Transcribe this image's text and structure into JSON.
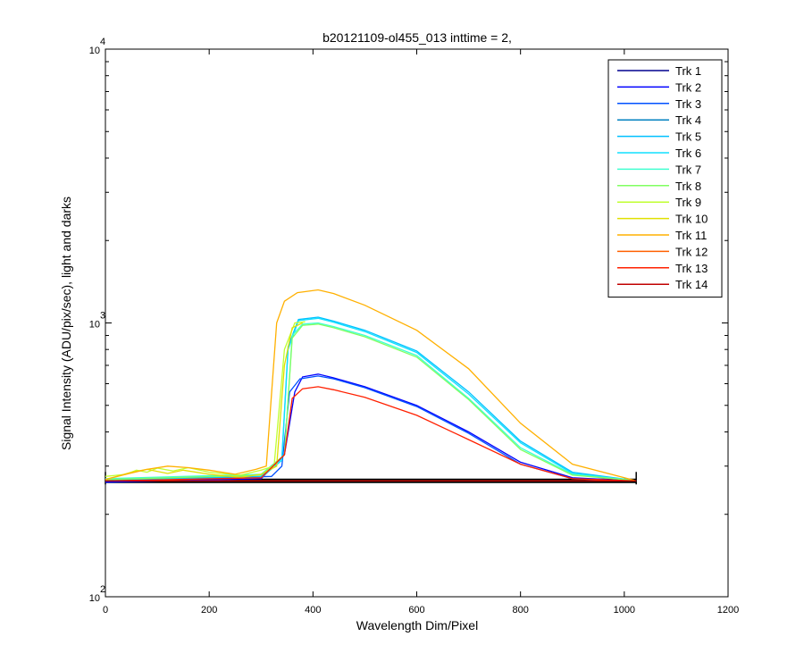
{
  "chart_data": {
    "type": "line",
    "title": "b20121109-ol455_013 inttime = 2,",
    "xlabel": "Wavelength Dim/Pixel",
    "ylabel": "Signal Intensity (ADU/pix/sec), light and darks",
    "xlim": [
      0,
      1200
    ],
    "ylim": [
      100,
      10000
    ],
    "yscale": "log",
    "x_ticks": [
      0,
      200,
      400,
      600,
      800,
      1000,
      1200
    ],
    "y_ticks": [
      {
        "base": "10",
        "exp": "2",
        "value": 100
      },
      {
        "base": "10",
        "exp": "3",
        "value": 1000
      },
      {
        "base": "10",
        "exp": "4",
        "value": 10000
      }
    ],
    "legend_location": "top-right",
    "grid": false,
    "dark_level": 265,
    "series": [
      {
        "name": "Trk 1",
        "color": "#00008f",
        "points": [
          [
            0,
            265
          ],
          [
            1023,
            265
          ]
        ]
      },
      {
        "name": "Trk 2",
        "color": "#0000ff",
        "points": [
          [
            0,
            262
          ],
          [
            300,
            270
          ],
          [
            345,
            330
          ],
          [
            365,
            560
          ],
          [
            380,
            635
          ],
          [
            410,
            650
          ],
          [
            440,
            630
          ],
          [
            500,
            585
          ],
          [
            600,
            500
          ],
          [
            700,
            400
          ],
          [
            800,
            310
          ],
          [
            900,
            272
          ],
          [
            1020,
            265
          ]
        ]
      },
      {
        "name": "Trk 3",
        "color": "#0050ff",
        "points": [
          [
            0,
            265
          ],
          [
            320,
            275
          ],
          [
            340,
            300
          ],
          [
            355,
            560
          ],
          [
            375,
            625
          ],
          [
            410,
            640
          ],
          [
            440,
            625
          ],
          [
            500,
            580
          ],
          [
            600,
            495
          ],
          [
            700,
            395
          ],
          [
            800,
            305
          ],
          [
            900,
            270
          ],
          [
            1020,
            265
          ]
        ]
      },
      {
        "name": "Trk 4",
        "color": "#0080c0",
        "points": [
          [
            0,
            265
          ],
          [
            1023,
            265
          ]
        ]
      },
      {
        "name": "Trk 5",
        "color": "#00c0ff",
        "points": [
          [
            0,
            268
          ],
          [
            300,
            275
          ],
          [
            340,
            320
          ],
          [
            352,
            820
          ],
          [
            372,
            1030
          ],
          [
            410,
            1050
          ],
          [
            440,
            1015
          ],
          [
            500,
            940
          ],
          [
            600,
            790
          ],
          [
            700,
            560
          ],
          [
            800,
            370
          ],
          [
            900,
            285
          ],
          [
            1020,
            266
          ]
        ]
      },
      {
        "name": "Trk 6",
        "color": "#10e0ff",
        "points": [
          [
            0,
            266
          ],
          [
            300,
            272
          ],
          [
            340,
            315
          ],
          [
            352,
            800
          ],
          [
            372,
            1020
          ],
          [
            410,
            1040
          ],
          [
            440,
            1005
          ],
          [
            500,
            930
          ],
          [
            600,
            780
          ],
          [
            700,
            550
          ],
          [
            800,
            365
          ],
          [
            900,
            282
          ],
          [
            1020,
            266
          ]
        ]
      },
      {
        "name": "Trk 7",
        "color": "#40ffd0",
        "points": [
          [
            0,
            270
          ],
          [
            300,
            280
          ],
          [
            345,
            330
          ],
          [
            360,
            900
          ],
          [
            380,
            990
          ],
          [
            410,
            1000
          ],
          [
            440,
            970
          ],
          [
            500,
            900
          ],
          [
            600,
            760
          ],
          [
            700,
            530
          ],
          [
            800,
            350
          ],
          [
            900,
            280
          ],
          [
            1020,
            266
          ]
        ]
      },
      {
        "name": "Trk 8",
        "color": "#80ff60",
        "points": [
          [
            0,
            268
          ],
          [
            300,
            278
          ],
          [
            345,
            330
          ],
          [
            360,
            880
          ],
          [
            380,
            980
          ],
          [
            410,
            990
          ],
          [
            440,
            960
          ],
          [
            500,
            890
          ],
          [
            600,
            750
          ],
          [
            700,
            525
          ],
          [
            800,
            345
          ],
          [
            900,
            278
          ],
          [
            1020,
            266
          ]
        ]
      },
      {
        "name": "Trk 9",
        "color": "#c0ff30",
        "points": [
          [
            0,
            275
          ],
          [
            40,
            280
          ],
          [
            60,
            290
          ],
          [
            80,
            285
          ],
          [
            100,
            295
          ],
          [
            130,
            288
          ],
          [
            160,
            296
          ],
          [
            200,
            285
          ],
          [
            260,
            278
          ],
          [
            300,
            290
          ],
          [
            325,
            300
          ],
          [
            345,
            800
          ],
          [
            365,
            1000
          ],
          [
            385,
            1010
          ]
        ]
      },
      {
        "name": "Trk 10",
        "color": "#e0e000",
        "points": [
          [
            0,
            268
          ],
          [
            50,
            285
          ],
          [
            80,
            292
          ],
          [
            120,
            282
          ],
          [
            150,
            290
          ],
          [
            200,
            280
          ],
          [
            260,
            273
          ],
          [
            300,
            280
          ],
          [
            330,
            300
          ],
          [
            345,
            700
          ],
          [
            360,
            960
          ],
          [
            380,
            1000
          ]
        ]
      },
      {
        "name": "Trk 11",
        "color": "#ffb000",
        "points": [
          [
            0,
            268
          ],
          [
            40,
            280
          ],
          [
            80,
            292
          ],
          [
            120,
            300
          ],
          [
            160,
            296
          ],
          [
            200,
            290
          ],
          [
            250,
            280
          ],
          [
            290,
            292
          ],
          [
            310,
            300
          ],
          [
            330,
            1000
          ],
          [
            345,
            1200
          ],
          [
            370,
            1290
          ],
          [
            410,
            1320
          ],
          [
            440,
            1280
          ],
          [
            500,
            1160
          ],
          [
            600,
            940
          ],
          [
            700,
            680
          ],
          [
            800,
            430
          ],
          [
            900,
            305
          ],
          [
            1020,
            266
          ]
        ]
      },
      {
        "name": "Trk 12",
        "color": "#ff6000",
        "points": [
          [
            0,
            265
          ],
          [
            1023,
            265
          ]
        ]
      },
      {
        "name": "Trk 13",
        "color": "#ff2000",
        "points": [
          [
            0,
            265
          ],
          [
            300,
            272
          ],
          [
            345,
            330
          ],
          [
            360,
            530
          ],
          [
            380,
            575
          ],
          [
            410,
            585
          ],
          [
            440,
            570
          ],
          [
            500,
            535
          ],
          [
            600,
            460
          ],
          [
            700,
            375
          ],
          [
            800,
            305
          ],
          [
            900,
            270
          ],
          [
            1020,
            265
          ]
        ]
      },
      {
        "name": "Trk 14",
        "color": "#c00000",
        "points": [
          [
            0,
            265
          ],
          [
            1023,
            265
          ]
        ]
      }
    ]
  }
}
